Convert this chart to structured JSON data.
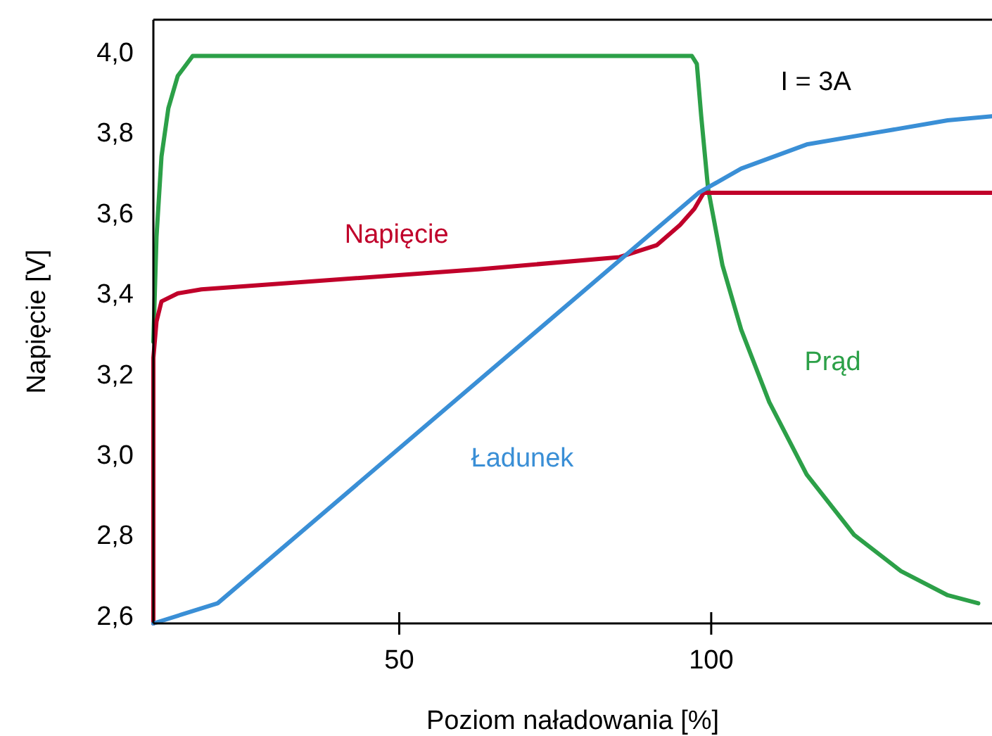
{
  "chart_data": {
    "type": "line",
    "xlabel": "Poziom naładowania [%]",
    "ylabel": "Napięcie [V]",
    "xlim": [
      10.6,
      145
    ],
    "xticks": [
      50,
      100
    ],
    "ylim": [
      2.58,
      4.08
    ],
    "yticks": [
      {
        "value": 2.6,
        "label": "2,6"
      },
      {
        "value": 2.8,
        "label": "2,8"
      },
      {
        "value": 3.0,
        "label": "3,0"
      },
      {
        "value": 3.2,
        "label": "3,2"
      },
      {
        "value": 3.4,
        "label": "3,4"
      },
      {
        "value": 3.6,
        "label": "3,6"
      },
      {
        "value": 3.8,
        "label": "3,8"
      },
      {
        "value": 4.0,
        "label": "4,0"
      }
    ],
    "grid": false,
    "marker": "none",
    "line_style": "solid",
    "annotations": [
      "I = 3A"
    ],
    "series": [
      {
        "name": "Prąd",
        "color": "#2ca048",
        "x": [
          10.6,
          11.1,
          11.9,
          13.0,
          14.5,
          16.9,
          96.9,
          97.7,
          98.4,
          99.5,
          101.8,
          104.8,
          109.3,
          115.3,
          122.9,
          130.4,
          137.9,
          142.8
        ],
        "values": [
          3.28,
          3.54,
          3.74,
          3.86,
          3.94,
          3.99,
          3.99,
          3.97,
          3.84,
          3.66,
          3.47,
          3.31,
          3.13,
          2.95,
          2.8,
          2.71,
          2.65,
          2.63
        ]
      },
      {
        "name": "Napięcie",
        "color": "#c0002a",
        "x": [
          10.6,
          10.6,
          11.1,
          11.9,
          14.5,
          18.3,
          62.7,
          85.3,
          91.3,
          95.0,
          97.3,
          98.8,
          145
        ],
        "values": [
          2.58,
          3.24,
          3.33,
          3.38,
          3.4,
          3.41,
          3.46,
          3.49,
          3.52,
          3.57,
          3.61,
          3.65,
          3.65
        ]
      },
      {
        "name": "Ładunek",
        "color": "#3a8fd6",
        "x": [
          10.6,
          20.9,
          98.0,
          104.8,
          115.3,
          126.6,
          137.9,
          145
        ],
        "values": [
          2.58,
          2.63,
          3.65,
          3.71,
          3.77,
          3.8,
          3.83,
          3.84
        ]
      }
    ]
  }
}
